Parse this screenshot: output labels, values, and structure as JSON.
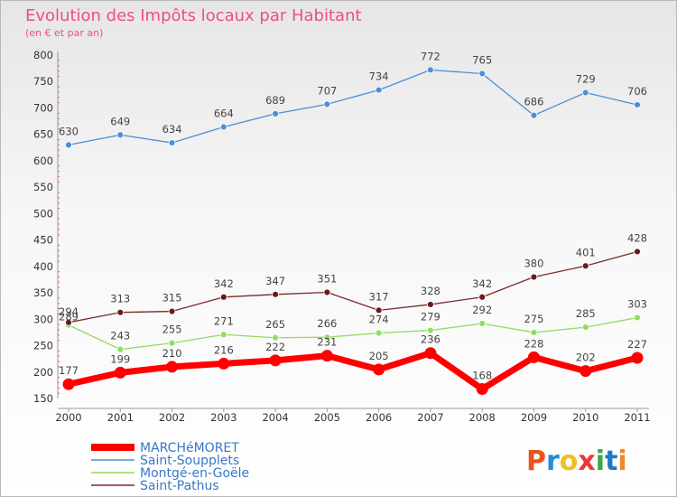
{
  "chart_data": {
    "type": "line",
    "title": "Evolution des Impôts locaux par Habitant",
    "subtitle": "(en € et par an)",
    "x": [
      "2000",
      "2001",
      "2002",
      "2003",
      "2004",
      "2005",
      "2006",
      "2007",
      "2008",
      "2009",
      "2010",
      "2011"
    ],
    "ylim": [
      150,
      800
    ],
    "yticks": [
      150,
      200,
      250,
      300,
      350,
      400,
      450,
      500,
      550,
      600,
      650,
      700,
      750,
      800
    ],
    "grid": false,
    "legend_position": "bottom-left",
    "series": [
      {
        "name": "MARCHéMORET",
        "color": "#ff0000",
        "values": [
          177,
          199,
          210,
          216,
          222,
          231,
          205,
          236,
          168,
          228,
          202,
          227
        ]
      },
      {
        "name": "Saint-Soupplets",
        "color": "#4d8fd1",
        "values": [
          630,
          649,
          634,
          664,
          689,
          707,
          734,
          772,
          765,
          686,
          729,
          706
        ]
      },
      {
        "name": "Montgé-en-Goële",
        "color": "#8fdc60",
        "values": [
          289,
          243,
          255,
          271,
          265,
          266,
          274,
          279,
          292,
          275,
          285,
          303
        ]
      },
      {
        "name": "Saint-Pathus",
        "color": "#7a2a2a",
        "values": [
          294,
          313,
          315,
          342,
          347,
          351,
          317,
          328,
          342,
          380,
          401,
          428
        ]
      }
    ]
  },
  "logo_text": "Proxiti",
  "logo_colors": [
    "#e8541e",
    "#2a8ad4",
    "#f0c020",
    "#ea3a3a",
    "#3aa84a",
    "#1e78c8",
    "#ee8a2a"
  ]
}
